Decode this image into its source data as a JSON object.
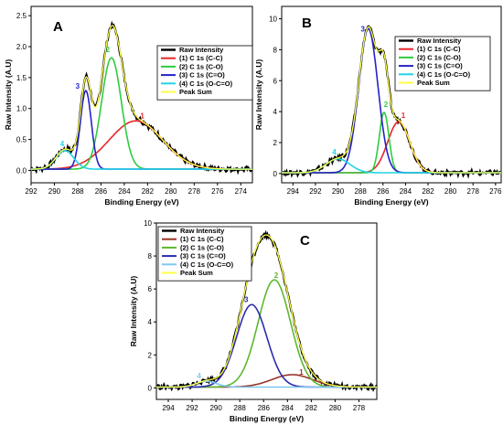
{
  "figure_title": "",
  "chart_data": [
    {
      "type": "line",
      "panel_label": "A",
      "xlabel": "Binding Energy (eV)",
      "ylabel": "Raw Intensity (A.U)",
      "xlim": [
        292,
        273
      ],
      "ylim": [
        -0.2,
        2.65
      ],
      "x_ticks": [
        292,
        290,
        288,
        286,
        284,
        282,
        280,
        278,
        276,
        274
      ],
      "y_ticks": [
        0.0,
        0.5,
        1.0,
        1.5,
        2.0,
        2.5
      ],
      "y_tick_labels": [
        "0.0",
        "0.5",
        "1.0",
        "1.5",
        "2.0",
        "2.5"
      ],
      "legend_placement": "top-right",
      "series": [
        {
          "name": "Raw Intensity",
          "color": "#000000",
          "kind": "raw"
        },
        {
          "name": "(1) C 1s (C-C)",
          "color": "#e8262a",
          "peak_label": "1",
          "center": 283.0,
          "height": 0.78,
          "fwhm": 5.4
        },
        {
          "name": "(2) C 1s (C-O)",
          "color": "#2ecc40",
          "peak_label": "2",
          "center": 285.1,
          "height": 1.8,
          "fwhm": 2.0
        },
        {
          "name": "(3) C 1s (C=O)",
          "color": "#2323c8",
          "peak_label": "3",
          "center": 287.3,
          "height": 1.27,
          "fwhm": 1.1
        },
        {
          "name": "(4) C 1s (O-C=O)",
          "color": "#22d3e6",
          "peak_label": "4",
          "center": 289.1,
          "height": 0.3,
          "fwhm": 1.8
        },
        {
          "name": "Peak Sum",
          "color": "#ffff44",
          "kind": "sum"
        }
      ],
      "background": 0.02
    },
    {
      "type": "line",
      "panel_label": "B",
      "xlabel": "Binding Energy (eV)",
      "ylabel": "Raw Intensity (A.U)",
      "xlim": [
        295,
        275.5
      ],
      "ylim": [
        -0.6,
        10.8
      ],
      "x_ticks": [
        294,
        292,
        290,
        288,
        286,
        284,
        282,
        280,
        278,
        276
      ],
      "y_ticks": [
        0,
        2,
        4,
        6,
        8,
        10
      ],
      "y_tick_labels": [
        "0",
        "2",
        "4",
        "6",
        "8",
        "10"
      ],
      "legend_placement": "top-right",
      "series": [
        {
          "name": "Raw Intensity",
          "color": "#000000",
          "kind": "raw"
        },
        {
          "name": "(1) C 1s (C-C)",
          "color": "#e8262a",
          "peak_label": "1",
          "center": 284.6,
          "height": 3.3,
          "fwhm": 2.3
        },
        {
          "name": "(2) C 1s (C-O)",
          "color": "#2ecc40",
          "peak_label": "2",
          "center": 285.9,
          "height": 3.9,
          "fwhm": 1.0
        },
        {
          "name": "(3) C 1s (C=O)",
          "color": "#2323c8",
          "peak_label": "3",
          "center": 287.3,
          "height": 9.3,
          "fwhm": 2.0
        },
        {
          "name": "(4) C 1s (O-C=O)",
          "color": "#22d3e6",
          "peak_label": "4",
          "center": 290.0,
          "height": 0.9,
          "fwhm": 2.5
        },
        {
          "name": "Peak Sum",
          "color": "#ffff44",
          "kind": "sum"
        }
      ],
      "background": 0.05
    },
    {
      "type": "line",
      "panel_label": "C",
      "xlabel": "Binding Energy (eV)",
      "ylabel": "Raw Intensity (A.U)",
      "xlim": [
        295,
        276.5
      ],
      "ylim": [
        -0.7,
        10
      ],
      "x_ticks": [
        294,
        292,
        290,
        288,
        286,
        284,
        282,
        280,
        278
      ],
      "y_ticks": [
        0,
        2,
        4,
        6,
        8,
        10
      ],
      "y_tick_labels": [
        "0",
        "2",
        "4",
        "6",
        "8",
        "10"
      ],
      "legend_placement": "top-left",
      "series": [
        {
          "name": "Raw Intensity",
          "color": "#000000",
          "kind": "raw"
        },
        {
          "name": "(1) C 1s (C-C)",
          "color": "#9a3328",
          "peak_label": "1",
          "center": 283.6,
          "height": 0.75,
          "fwhm": 4.0
        },
        {
          "name": "(2) C 1s (C-O)",
          "color": "#5cb82e",
          "peak_label": "2",
          "center": 285.1,
          "height": 6.5,
          "fwhm": 3.2
        },
        {
          "name": "(3) C 1s (C=O)",
          "color": "#2b2bb0",
          "peak_label": "3",
          "center": 287.0,
          "height": 5.0,
          "fwhm": 3.0
        },
        {
          "name": "(4) C 1s (O-C=O)",
          "color": "#7ec8f0",
          "peak_label": "4",
          "center": 290.8,
          "height": 0.35,
          "fwhm": 2.0
        },
        {
          "name": "Peak Sum",
          "color": "#ffff44",
          "kind": "sum"
        }
      ],
      "background": 0.05
    }
  ]
}
